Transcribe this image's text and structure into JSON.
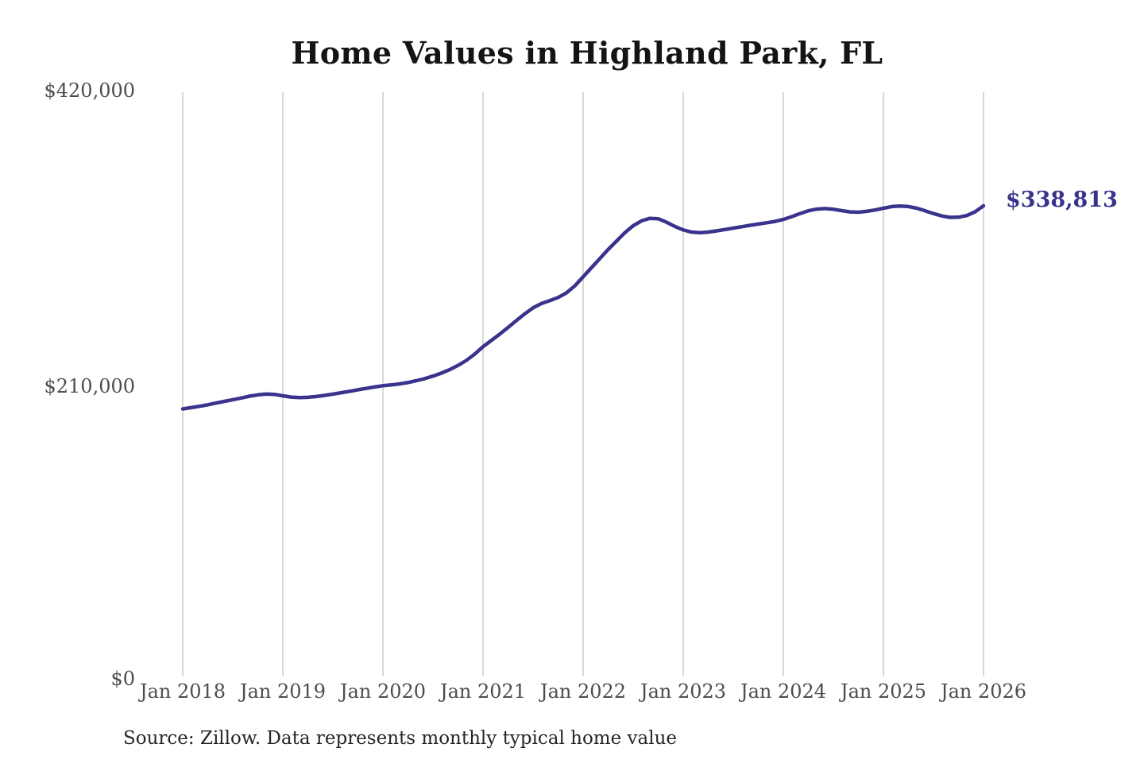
{
  "header": {
    "title": "Home Values in Highland Park, FL"
  },
  "footer": {
    "source": "Source: Zillow. Data represents monthly typical home value"
  },
  "colors": {
    "line": "#3a338c",
    "grid": "#cccccc",
    "tick_text": "#4d4d4d",
    "title_text": "#141414",
    "end_label_text": "#3a338c",
    "background": "#ffffff"
  },
  "chart_data": {
    "type": "line",
    "title": "Home Values in Highland Park, FL",
    "xlabel": "",
    "ylabel": "",
    "ylim": [
      0,
      420000
    ],
    "grid": "vertical-only",
    "legend": "none",
    "end_label": "$338,813",
    "final_value": 338813,
    "y_tick_values": [
      420000,
      210000,
      0
    ],
    "y_tick_labels": [
      "$420,000",
      "$210,000",
      "$0"
    ],
    "x_tick_labels": [
      "Jan 2018",
      "Jan 2019",
      "Jan 2020",
      "Jan 2021",
      "Jan 2022",
      "Jan 2023",
      "Jan 2024",
      "Jan 2025",
      "Jan 2026"
    ],
    "x": [
      "2018-01",
      "2018-02",
      "2018-03",
      "2018-04",
      "2018-05",
      "2018-06",
      "2018-07",
      "2018-08",
      "2018-09",
      "2018-10",
      "2018-11",
      "2018-12",
      "2019-01",
      "2019-02",
      "2019-03",
      "2019-04",
      "2019-05",
      "2019-06",
      "2019-07",
      "2019-08",
      "2019-09",
      "2019-10",
      "2019-11",
      "2019-12",
      "2020-01",
      "2020-02",
      "2020-03",
      "2020-04",
      "2020-05",
      "2020-06",
      "2020-07",
      "2020-08",
      "2020-09",
      "2020-10",
      "2020-11",
      "2020-12",
      "2021-01",
      "2021-02",
      "2021-03",
      "2021-04",
      "2021-05",
      "2021-06",
      "2021-07",
      "2021-08",
      "2021-09",
      "2021-10",
      "2021-11",
      "2021-12",
      "2022-01",
      "2022-02",
      "2022-03",
      "2022-04",
      "2022-05",
      "2022-06",
      "2022-07",
      "2022-08",
      "2022-09",
      "2022-10",
      "2022-11",
      "2022-12",
      "2023-01",
      "2023-02",
      "2023-03",
      "2023-04",
      "2023-05",
      "2023-06",
      "2023-07",
      "2023-08",
      "2023-09",
      "2023-10",
      "2023-11",
      "2023-12",
      "2024-01",
      "2024-02",
      "2024-03",
      "2024-04",
      "2024-05",
      "2024-06",
      "2024-07",
      "2024-08",
      "2024-09",
      "2024-10",
      "2024-11",
      "2024-12",
      "2025-01",
      "2025-02",
      "2025-03",
      "2025-04",
      "2025-05",
      "2025-06",
      "2025-07",
      "2025-08",
      "2025-09",
      "2025-10",
      "2025-11",
      "2025-12",
      "2026-01"
    ],
    "series": [
      {
        "name": "Monthly typical home value",
        "values": [
          193500,
          194400,
          195400,
          196500,
          197700,
          198900,
          200100,
          201300,
          202600,
          203600,
          204200,
          203900,
          202900,
          202000,
          201600,
          201800,
          202400,
          203200,
          204100,
          205100,
          206100,
          207200,
          208200,
          209200,
          210100,
          210700,
          211400,
          212400,
          213700,
          215200,
          217000,
          219100,
          221600,
          224600,
          228200,
          232700,
          238000,
          242500,
          247000,
          251800,
          256700,
          261500,
          265800,
          268900,
          271000,
          273200,
          276500,
          281500,
          288000,
          294500,
          301000,
          307500,
          313500,
          319500,
          324500,
          328000,
          329800,
          329500,
          327000,
          324000,
          321500,
          320000,
          319500,
          320000,
          320800,
          321800,
          322800,
          323800,
          324800,
          325700,
          326600,
          327600,
          329000,
          331000,
          333200,
          335200,
          336400,
          336800,
          336300,
          335300,
          334400,
          334200,
          334800,
          335800,
          337000,
          338200,
          338600,
          338200,
          337000,
          335200,
          333200,
          331500,
          330500,
          330600,
          331800,
          334500,
          338813
        ]
      }
    ]
  }
}
